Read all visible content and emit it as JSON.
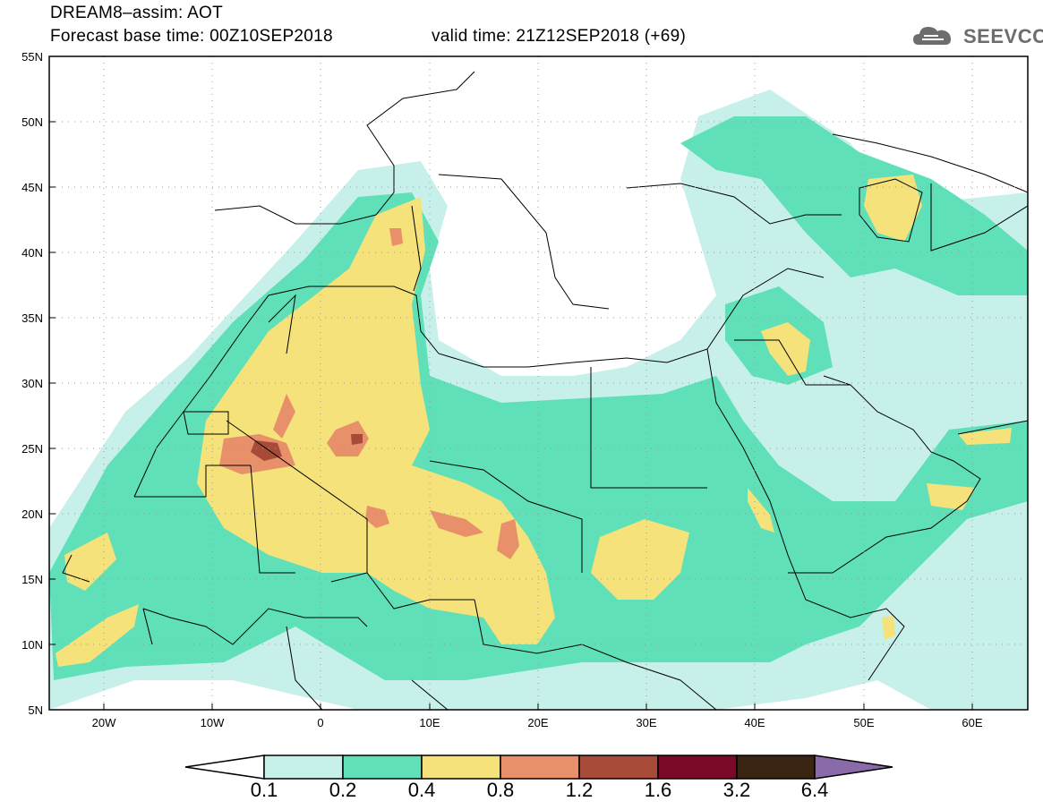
{
  "header": {
    "line1": "DREAM8–assim: AOT",
    "line2": "Forecast base time: 00Z10SEP2018",
    "line3": "valid time: 21Z12SEP2018 (+69)",
    "logo_text": "SEEVCCC"
  },
  "map": {
    "lon_range": [
      -25,
      65
    ],
    "lat_range": [
      5,
      55
    ],
    "lon_ticks": [
      "20W",
      "10W",
      "0",
      "10E",
      "20E",
      "30E",
      "40E",
      "50E",
      "60E"
    ],
    "lat_ticks": [
      "55N",
      "50N",
      "45N",
      "40N",
      "35N",
      "30N",
      "25N",
      "20N",
      "15N",
      "10N",
      "5N"
    ]
  },
  "colorbar": {
    "labels": [
      "0.1",
      "0.2",
      "0.4",
      "0.8",
      "1.2",
      "1.6",
      "3.2",
      "6.4"
    ],
    "colors": [
      "#c8f0ea",
      "#5fe0b8",
      "#f5e27a",
      "#e8906a",
      "#a84a38",
      "#7a0a28",
      "#3a2412",
      "#8a6aa8"
    ]
  }
}
